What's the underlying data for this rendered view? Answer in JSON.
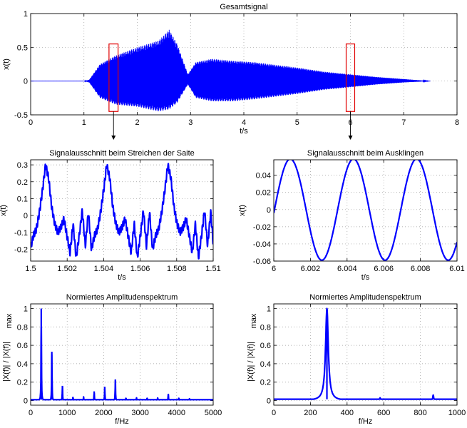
{
  "figure": {
    "signal_color": "#0000ff",
    "marker_color": "#e00000",
    "grid": "dotted",
    "font_size": 11
  },
  "chart_data": [
    {
      "id": "overview",
      "type": "line",
      "title": "Gesamtsignal",
      "xlabel": "t/s",
      "ylabel": "x(t)",
      "xlim": [
        0,
        8
      ],
      "ylim": [
        -0.5,
        1
      ],
      "xticks": [
        "0",
        "1",
        "2",
        "3",
        "4",
        "5",
        "6",
        "7",
        "8"
      ],
      "yticks": [
        "-0.5",
        "0",
        "0.5",
        "1"
      ],
      "xtick_values": [
        0,
        1,
        2,
        3,
        4,
        5,
        6,
        7,
        8
      ],
      "ytick_values": [
        -0.5,
        0,
        0.5,
        1
      ],
      "envelope": {
        "t": [
          0,
          1.0,
          1.1,
          1.3,
          1.6,
          2.0,
          2.4,
          2.6,
          2.75,
          2.95,
          3.1,
          3.4,
          3.8,
          4.2,
          4.6,
          5.0,
          5.5,
          6.0,
          6.5,
          7.0,
          7.5
        ],
        "upper": [
          0.0,
          0.0,
          0.02,
          0.25,
          0.38,
          0.5,
          0.6,
          0.76,
          0.55,
          0.1,
          0.28,
          0.33,
          0.3,
          0.28,
          0.24,
          0.2,
          0.14,
          0.1,
          0.06,
          0.03,
          0.0
        ],
        "lower": [
          0.0,
          0.0,
          -0.02,
          -0.25,
          -0.35,
          -0.38,
          -0.45,
          -0.42,
          -0.32,
          -0.05,
          -0.25,
          -0.3,
          -0.3,
          -0.27,
          -0.23,
          -0.19,
          -0.13,
          -0.09,
          -0.05,
          -0.02,
          0.0
        ]
      },
      "markers": [
        {
          "t_range": [
            1.47,
            1.64
          ],
          "y_range": [
            -0.45,
            0.55
          ]
        },
        {
          "t_range": [
            5.92,
            6.08
          ],
          "y_range": [
            -0.45,
            0.55
          ]
        }
      ]
    },
    {
      "id": "segment-strike",
      "type": "line",
      "title": "Signalausschnitt beim Streichen der Saite",
      "xlabel": "t/s",
      "ylabel": "x(t)",
      "xlim": [
        1.5,
        1.51
      ],
      "ylim": [
        -0.27,
        0.33
      ],
      "xticks": [
        "1.5",
        "1.502",
        "1.504",
        "1.506",
        "1.508",
        "1.51"
      ],
      "xtick_values": [
        1.5,
        1.502,
        1.504,
        1.506,
        1.508,
        1.51
      ],
      "yticks": [
        "-0.2",
        "-0.1",
        "0",
        "0.1",
        "0.2",
        "0.3"
      ],
      "ytick_values": [
        -0.2,
        -0.1,
        0,
        0.1,
        0.2,
        0.3
      ],
      "period_s": 0.00335,
      "waveform_one_period": {
        "phase": [
          0,
          0.05,
          0.1,
          0.15,
          0.2,
          0.25,
          0.3,
          0.35,
          0.4,
          0.45,
          0.5,
          0.55,
          0.6,
          0.65,
          0.7,
          0.75,
          0.8,
          0.85,
          0.9,
          0.95,
          1.0
        ],
        "x": [
          0.15,
          0.3,
          0.22,
          0.05,
          -0.05,
          -0.1,
          -0.07,
          -0.02,
          -0.12,
          -0.22,
          -0.05,
          -0.25,
          -0.12,
          0.03,
          -0.18,
          0.02,
          -0.2,
          -0.12,
          -0.08,
          0.02,
          0.15
        ]
      }
    },
    {
      "id": "segment-decay",
      "type": "line",
      "title": "Signalausschnitt beim Ausklingen",
      "xlabel": "t/s",
      "ylabel": "x(t)",
      "xlim": [
        6,
        6.01
      ],
      "ylim": [
        -0.06,
        0.058
      ],
      "xticks": [
        "6",
        "6.002",
        "6.004",
        "6.006",
        "6.008",
        "6.01"
      ],
      "xtick_values": [
        6,
        6.002,
        6.004,
        6.006,
        6.008,
        6.01
      ],
      "yticks": [
        "-0.06",
        "-0.04",
        "-0.02",
        "0",
        "0.02",
        "0.04"
      ],
      "ytick_values": [
        -0.06,
        -0.04,
        -0.02,
        0,
        0.02,
        0.04
      ],
      "frequency_hz": 290,
      "amplitude": 0.059,
      "first_peak_t": 6.0009
    },
    {
      "id": "spectrum-strike",
      "type": "line",
      "title": "Normiertes Amplitudenspektrum",
      "xlabel": "f/Hz",
      "ylabel": "|X(f)| / |X(f)|",
      "ylabel_sub": "max",
      "xlim": [
        0,
        5000
      ],
      "ylim": [
        -0.05,
        1.05
      ],
      "xticks": [
        "0",
        "1000",
        "2000",
        "3000",
        "4000",
        "5000"
      ],
      "xtick_values": [
        0,
        1000,
        2000,
        3000,
        4000,
        5000
      ],
      "yticks": [
        "0",
        "0.2",
        "0.4",
        "0.6",
        "0.8",
        "1"
      ],
      "ytick_values": [
        0,
        0.2,
        0.4,
        0.6,
        0.8,
        1
      ],
      "baseline": 0.01,
      "peaks": [
        {
          "f": 290,
          "a": 1.0
        },
        {
          "f": 580,
          "a": 0.53
        },
        {
          "f": 870,
          "a": 0.16
        },
        {
          "f": 1160,
          "a": 0.04
        },
        {
          "f": 1450,
          "a": 0.04
        },
        {
          "f": 1740,
          "a": 0.1
        },
        {
          "f": 2030,
          "a": 0.15
        },
        {
          "f": 2320,
          "a": 0.23
        },
        {
          "f": 2610,
          "a": 0.03
        },
        {
          "f": 2900,
          "a": 0.03
        },
        {
          "f": 3190,
          "a": 0.03
        },
        {
          "f": 3480,
          "a": 0.03
        },
        {
          "f": 3770,
          "a": 0.07
        },
        {
          "f": 4060,
          "a": 0.03
        },
        {
          "f": 4350,
          "a": 0.02
        },
        {
          "f": 4640,
          "a": 0.01
        }
      ]
    },
    {
      "id": "spectrum-decay",
      "type": "line",
      "title": "Normiertes Amplitudenspektrum",
      "xlabel": "f/Hz",
      "ylabel": "|X(f)| / |X(f)|",
      "ylabel_sub": "max",
      "xlim": [
        0,
        1000
      ],
      "ylim": [
        -0.05,
        1.05
      ],
      "xticks": [
        "0",
        "200",
        "400",
        "600",
        "800",
        "1000"
      ],
      "xtick_values": [
        0,
        200,
        400,
        600,
        800,
        1000
      ],
      "yticks": [
        "0",
        "0.2",
        "0.4",
        "0.6",
        "0.8",
        "1"
      ],
      "ytick_values": [
        0,
        0.2,
        0.4,
        0.6,
        0.8,
        1
      ],
      "baseline": 0.015,
      "peaks": [
        {
          "f": 290,
          "a": 1.0,
          "width": 9
        },
        {
          "f": 580,
          "a": 0.03,
          "width": 3
        },
        {
          "f": 870,
          "a": 0.06,
          "width": 3
        }
      ]
    }
  ]
}
